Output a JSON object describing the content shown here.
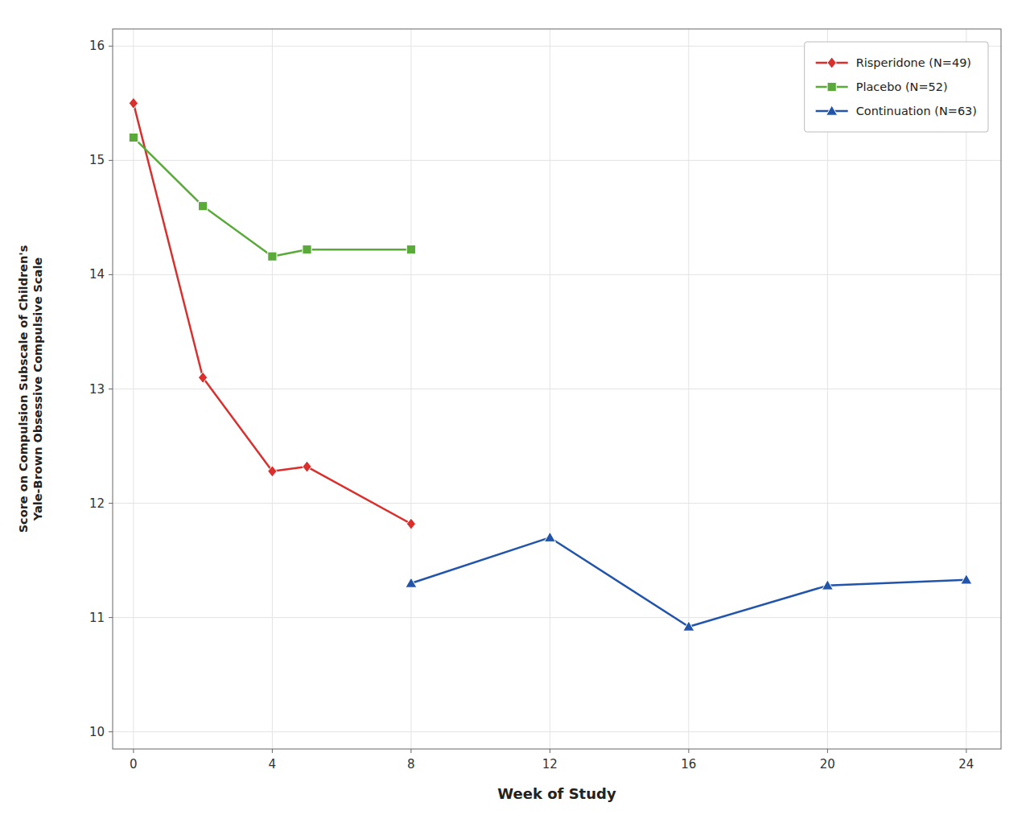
{
  "chart_data": {
    "type": "line",
    "x_label": "Week of Study",
    "y_label": "Score on Compulsion Subscale of Children's\nYale-Brown Obsessive Compulsive Scale",
    "series": [
      {
        "name": "Risperidone (N=49)",
        "color": "#d9302e",
        "marker": "diamond",
        "x": [
          0,
          2,
          4,
          5,
          8
        ],
        "values": [
          15.5,
          13.1,
          12.28,
          12.32,
          11.82
        ]
      },
      {
        "name": "Placebo (N=52)",
        "color": "#5aaa3a",
        "marker": "square",
        "x": [
          0,
          2,
          4,
          5,
          8
        ],
        "values": [
          15.2,
          14.6,
          14.16,
          14.22,
          14.22
        ]
      },
      {
        "name": "Continuation (N=63)",
        "color": "#2255aa",
        "marker": "triangle",
        "x": [
          8,
          12,
          16,
          20,
          24
        ],
        "values": [
          11.3,
          11.7,
          10.92,
          11.28,
          11.33
        ]
      }
    ],
    "xlim": [
      -0.6,
      25.0
    ],
    "ylim": [
      9.85,
      16.15
    ],
    "xticks": [
      0,
      4,
      8,
      12,
      16,
      20,
      24
    ],
    "yticks": [
      10,
      11,
      12,
      13,
      14,
      15,
      16
    ],
    "grid": true,
    "legend": "upper right"
  }
}
